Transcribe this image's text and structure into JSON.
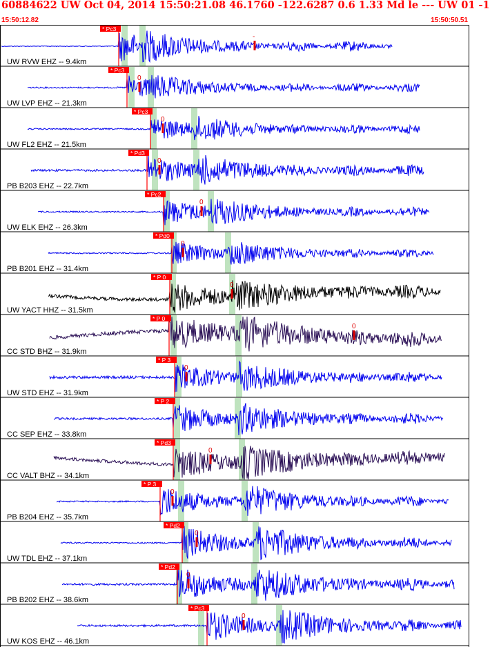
{
  "header": {
    "title": "60884622 UW Oct 04, 2014 15:50:21.08   46.1760 -122.6287  0.6 1.33 Md le --- UW 01  -1",
    "start_time": "15:50:12.82",
    "end_time": "15:50:50.51"
  },
  "colors": {
    "header_text": "#ff0000",
    "pick_box": "#ff0000",
    "pick_mark": "#dd0000",
    "arrival_band": "#bfe3bf",
    "trace_blue": "#0000ee",
    "trace_black": "#000000",
    "trace_purple": "#2a0f55"
  },
  "traces": [
    {
      "label": "UW RVW EHZ -- 9.4km",
      "pick": "Pc3",
      "coda_mark": "-",
      "color": "blue"
    },
    {
      "label": "UW LVP EHZ -- 21.3km",
      "pick": "Pc3",
      "coda_mark": "0",
      "color": "blue"
    },
    {
      "label": "UW FL2 EHZ -- 21.5km",
      "pick": "Pc3",
      "coda_mark": "0",
      "color": "blue"
    },
    {
      "label": "PB B203 EHZ -- 22.7km",
      "pick": "Pd3",
      "coda_mark": "0",
      "color": "blue"
    },
    {
      "label": "UW ELK EHZ -- 26.3km",
      "pick": "Pc2",
      "coda_mark": "0",
      "color": "blue"
    },
    {
      "label": "PB B201 EHZ -- 31.4km",
      "pick": "Pd0",
      "coda_mark": "0",
      "color": "blue"
    },
    {
      "label": "UW YACT HHZ -- 31.5km",
      "pick": "P 0",
      "coda_mark": "0",
      "color": "black"
    },
    {
      "label": "CC STD BHZ -- 31.9km",
      "pick": "P 0",
      "coda_mark": "0",
      "color": "purple"
    },
    {
      "label": "UW STD EHZ -- 31.9km",
      "pick": "P 3",
      "coda_mark": "0",
      "color": "blue"
    },
    {
      "label": "CC SEP EHZ -- 33.8km",
      "pick": "P 2",
      "coda_mark": "",
      "color": "blue"
    },
    {
      "label": "CC VALT BHZ -- 34.1km",
      "pick": "Pd3",
      "coda_mark": "0",
      "color": "purple"
    },
    {
      "label": "PB B204 EHZ -- 35.7km",
      "pick": "P 3",
      "coda_mark": "0",
      "color": "blue"
    },
    {
      "label": "UW TDL EHZ -- 37.1km",
      "pick": "Pd2",
      "coda_mark": "0",
      "color": "blue"
    },
    {
      "label": "PB B202 EHZ -- 38.6km",
      "pick": "Pd2",
      "coda_mark": "0",
      "color": "blue"
    },
    {
      "label": "UW KOS EHZ -- 46.1km",
      "pick": "Pc3",
      "coda_mark": "0",
      "color": "blue"
    }
  ]
}
